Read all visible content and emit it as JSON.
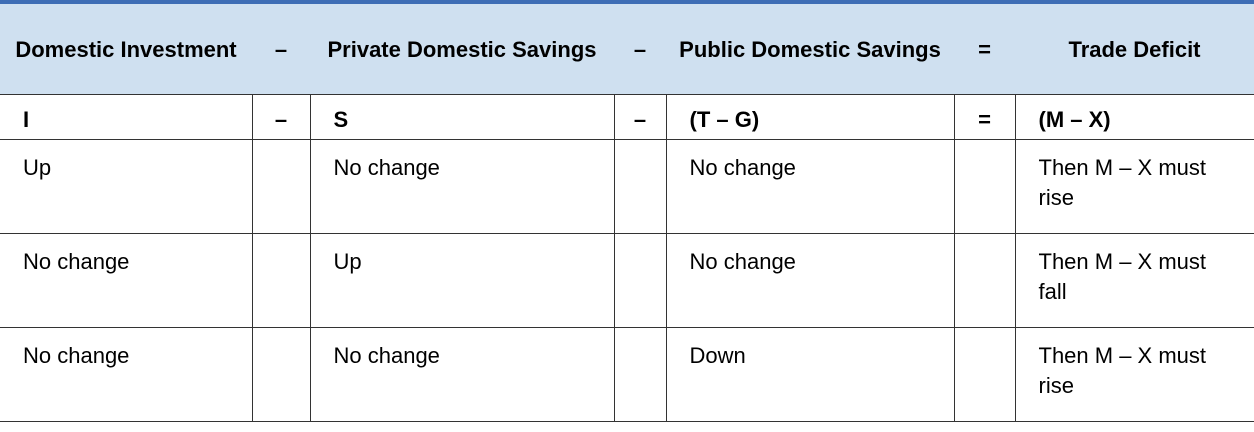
{
  "header": {
    "col1": "Domestic Investment",
    "op1": "–",
    "col2": "Private Domestic Savings",
    "op2": "–",
    "col3": "Public Domestic Savings",
    "op3": "=",
    "col4": "Trade Deficit"
  },
  "formula": {
    "col1": "I",
    "op1": "–",
    "col2": "S",
    "op2": "–",
    "col3": "(T – G)",
    "op3": "=",
    "col4": "(M – X)"
  },
  "rows": [
    {
      "investment": "Up",
      "private_savings": "No change",
      "public_savings": "No change",
      "trade_deficit": "Then M – X must rise"
    },
    {
      "investment": "No change",
      "private_savings": "Up",
      "public_savings": "No change",
      "trade_deficit": "Then M – X must fall"
    },
    {
      "investment": "No change",
      "private_savings": "No change",
      "public_savings": "Down",
      "trade_deficit": "Then M – X must rise"
    }
  ],
  "colors": {
    "header_background": "#cfe0f0",
    "header_rule": "#3e6db5"
  }
}
